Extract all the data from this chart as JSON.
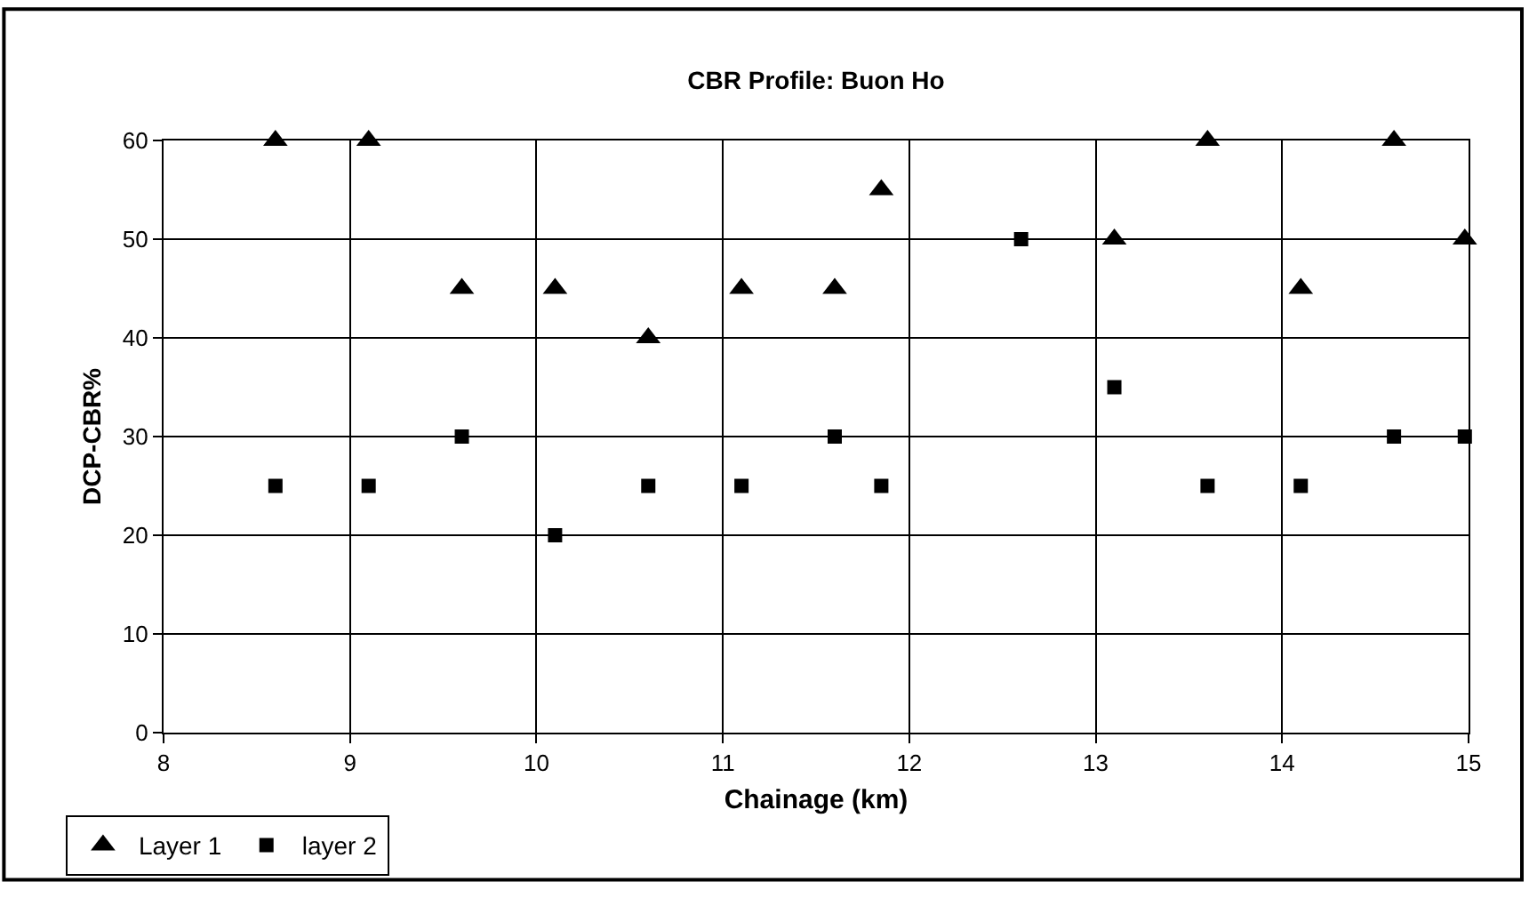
{
  "chart_data": {
    "type": "scatter",
    "title": "CBR Profile: Buon Ho",
    "xlabel": "Chainage (km)",
    "ylabel": "DCP-CBR%",
    "series": [
      {
        "name": "Layer 1",
        "color": "#000000",
        "marker": "triangle",
        "x": [
          8.6,
          9.1,
          9.6,
          10.1,
          10.6,
          11.1,
          11.6,
          11.85,
          13.1,
          13.6,
          14.1,
          14.6,
          14.98
        ],
        "values": [
          60,
          60,
          45,
          45,
          40,
          45,
          45,
          55,
          50,
          60,
          45,
          60,
          50
        ]
      },
      {
        "name": "layer 2",
        "color": "#000000",
        "marker": "square",
        "x": [
          8.6,
          9.1,
          9.6,
          10.1,
          10.6,
          11.1,
          11.6,
          11.85,
          12.6,
          13.1,
          13.6,
          14.1,
          14.6,
          14.98
        ],
        "values": [
          25,
          25,
          30,
          20,
          25,
          25,
          30,
          25,
          50,
          35,
          25,
          25,
          30,
          30
        ]
      }
    ],
    "xlim": [
      8,
      15
    ],
    "xticks": [
      8,
      9,
      10,
      11,
      12,
      13,
      14,
      15
    ],
    "ylim": [
      0,
      60
    ],
    "yticks": [
      0,
      10,
      20,
      30,
      40,
      50,
      60
    ],
    "grid": true,
    "legend": "bottom left"
  }
}
